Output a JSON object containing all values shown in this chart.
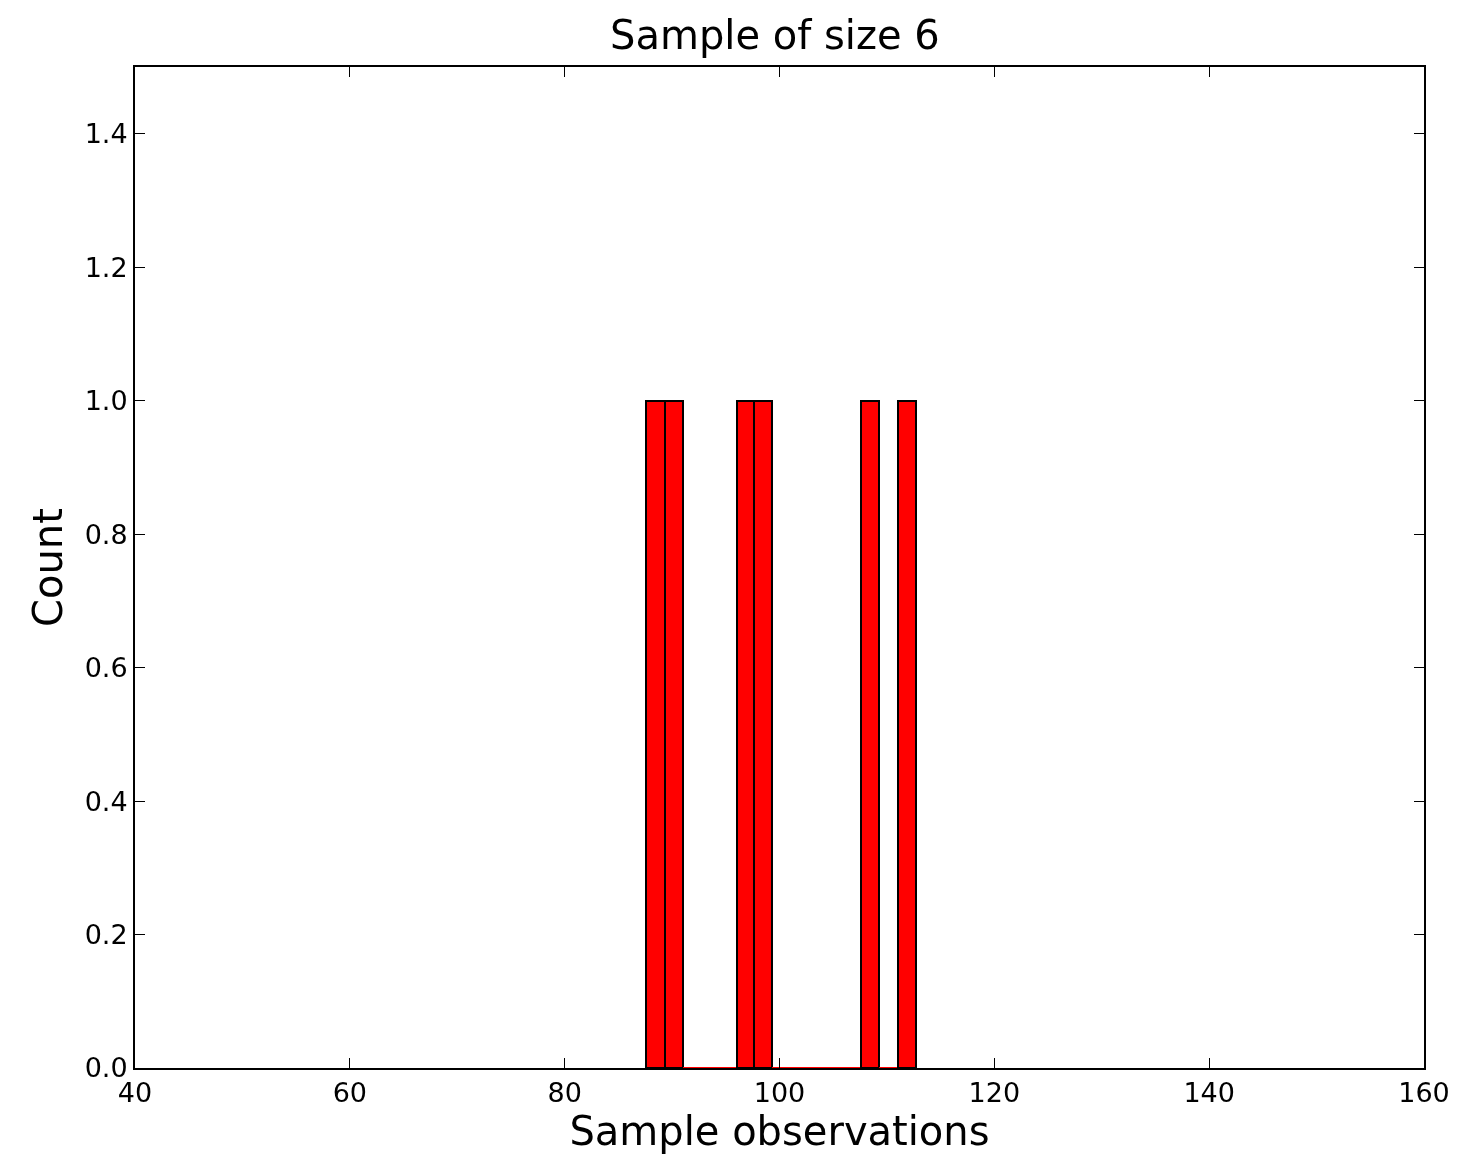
{
  "chart_data": {
    "type": "histogram",
    "title": "Sample of size 6",
    "xlabel": "Sample observations",
    "ylabel": "Count",
    "bins": [
      87.6,
      89.3,
      91.0,
      92.6,
      94.3,
      96.0,
      97.6,
      99.3,
      101.0,
      102.6,
      104.3,
      106.0,
      107.6,
      109.3,
      111.0,
      112.7
    ],
    "values": [
      1,
      1,
      0,
      0,
      0,
      1,
      1,
      0,
      0,
      0,
      0,
      0,
      1,
      0,
      1
    ],
    "color": "#ff0000",
    "xlim": [
      40,
      160
    ],
    "xticks": [
      40,
      60,
      80,
      100,
      120,
      140,
      160
    ],
    "ylim": [
      0,
      1.5
    ],
    "yticks": [
      {
        "value": 0,
        "label": "0.0"
      },
      0.2,
      0.4,
      0.6,
      0.8,
      {
        "value": 1,
        "label": "1.0"
      },
      1.2,
      1.4
    ]
  }
}
